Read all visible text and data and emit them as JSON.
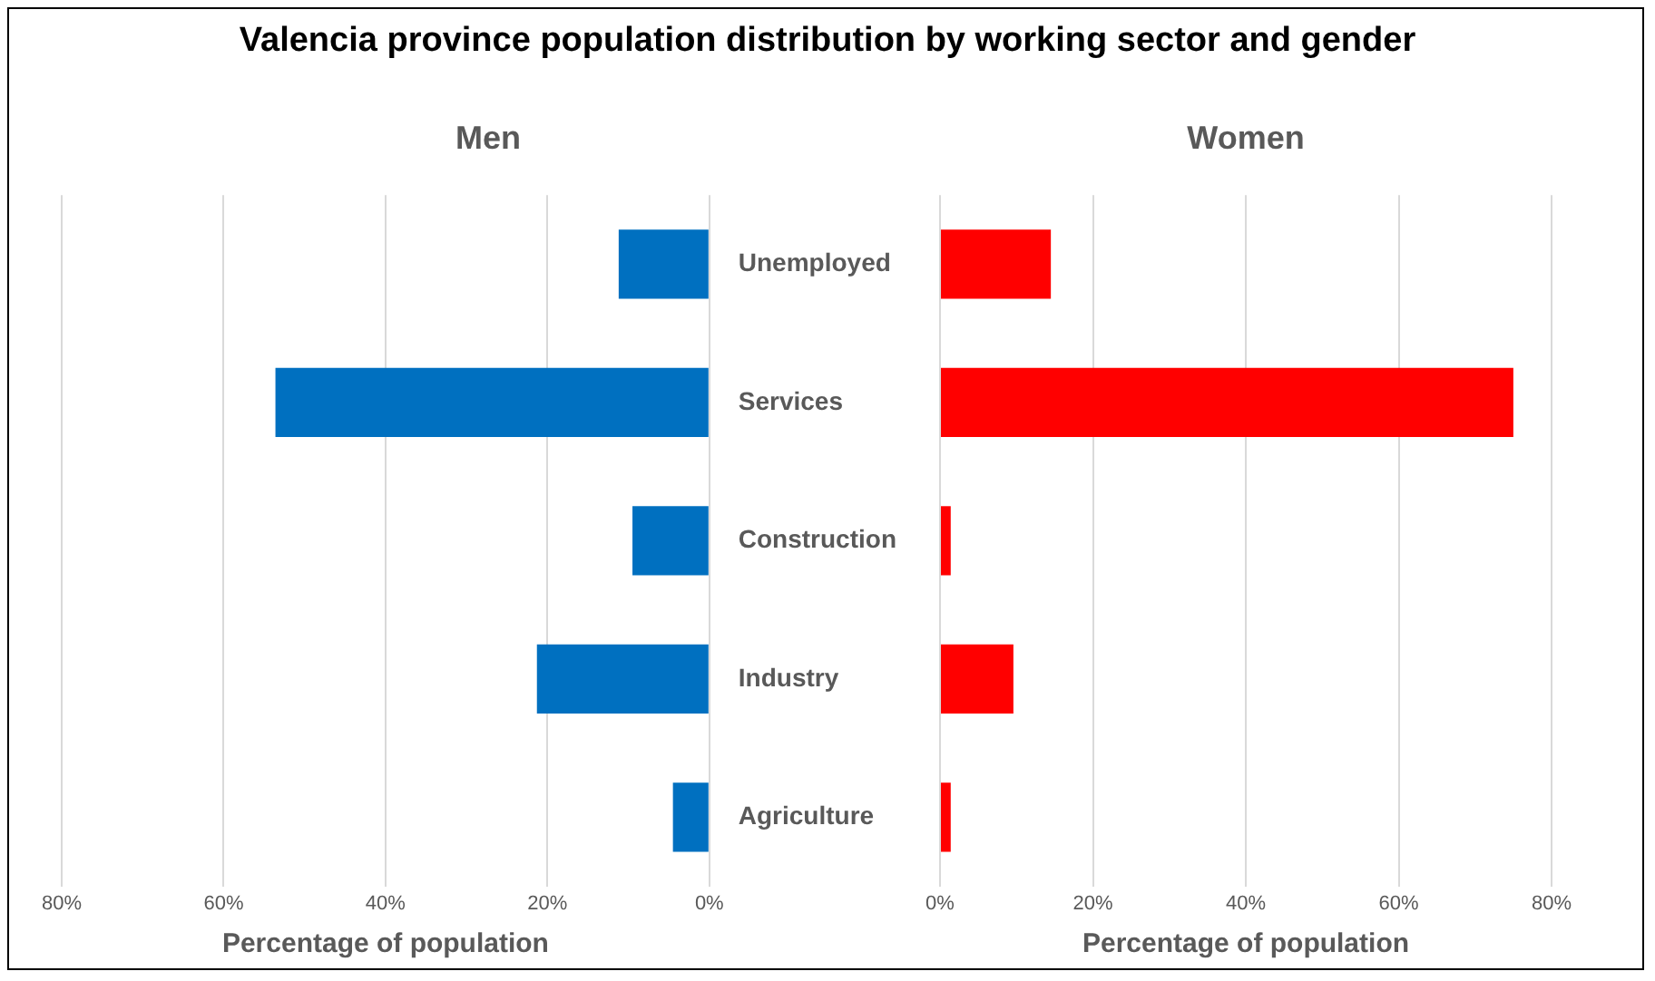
{
  "chart_data": [
    {
      "type": "bar",
      "title": "Valencia province population distribution by working sector and gender",
      "subtitle": "Men",
      "orientation": "horizontal",
      "categories": [
        "Unemployed",
        "Services",
        "Construction",
        "Industry",
        "Agriculture"
      ],
      "series": [
        {
          "color": "#0070c0",
          "values": [
            11.2,
            53.6,
            9.5,
            21.3,
            4.5
          ]
        }
      ],
      "xlim": [
        80,
        0
      ],
      "xticks": [
        {
          "value": 80,
          "label": "80%"
        },
        {
          "value": 60,
          "label": "60%"
        },
        {
          "value": 40,
          "label": "40%"
        },
        {
          "value": 20,
          "label": "20%"
        },
        {
          "value": 0,
          "label": "0%"
        }
      ],
      "xlabel": "Percentage of population",
      "grid": "x"
    },
    {
      "type": "bar",
      "title": "Women",
      "orientation": "horizontal",
      "categories": [
        null,
        null,
        null,
        null,
        null
      ],
      "series": [
        {
          "color": "#ff0000",
          "values": [
            14.5,
            75,
            1.4,
            9.6,
            1.4
          ]
        }
      ],
      "xlim": [
        0,
        80
      ],
      "xticks": [
        {
          "value": 0,
          "label": "0%"
        },
        {
          "value": 20,
          "label": "20%"
        },
        {
          "value": 40,
          "label": "40%"
        },
        {
          "value": 60,
          "label": "60%"
        },
        {
          "value": 80,
          "label": "80%"
        }
      ],
      "xlabel": "Percentage of population",
      "grid": "x",
      "tick_labels": "x"
    }
  ]
}
